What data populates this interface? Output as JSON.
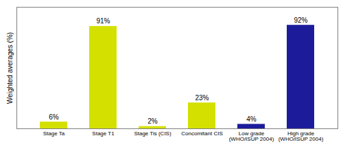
{
  "chart_data": {
    "type": "bar",
    "categories": [
      "Stage Ta",
      "Stage T1",
      "Stage Tis (CIS)",
      "Concomitant CIS",
      "Low grade\n(WHO/ISUP 2004)",
      "High grade\n(WHO/ISUP 2004)"
    ],
    "values": [
      6,
      91,
      2,
      23,
      4,
      92
    ],
    "value_labels": [
      "6%",
      "91%",
      "2%",
      "23%",
      "4%",
      "92%"
    ],
    "colors": [
      "#d4e000",
      "#d4e000",
      "#d4e000",
      "#d4e000",
      "#1c1c9b",
      "#1c1c9b"
    ],
    "ylabel": "Weighted averages (%)",
    "ylim": [
      0,
      108
    ],
    "yticks": [],
    "data_labels": true,
    "tick_labels": "x",
    "grid": false
  }
}
